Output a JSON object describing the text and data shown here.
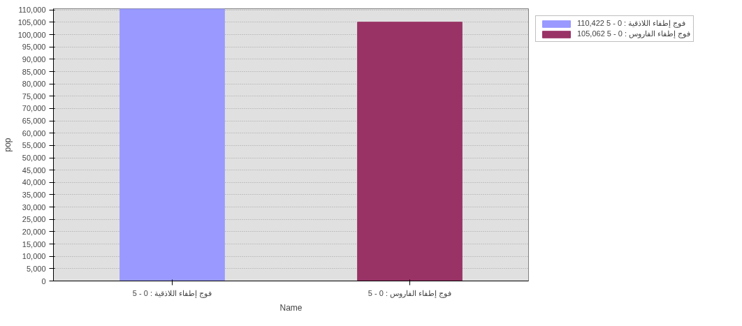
{
  "chart_data": {
    "type": "bar",
    "xlabel": "Name",
    "ylabel": "pop",
    "categories": [
      "فوج إطفاء اللاذقية : 0 - 5",
      "فوج إطفاء الفاروس : 0 - 5"
    ],
    "series": [
      {
        "name": "فوج إطفاء اللاذقية : 0 - 5 110,422",
        "color": "#9999ff",
        "values": [
          110422,
          null
        ]
      },
      {
        "name": "فوج إطفاء الفاروس : 0 - 5 105,062",
        "color": "#993366",
        "values": [
          null,
          105062
        ]
      }
    ],
    "ylim": [
      0,
      110500
    ],
    "yticks": [
      0,
      {
        "value": 5000,
        "label": "5,000"
      },
      {
        "value": 10000,
        "label": "10,000"
      },
      {
        "value": 15000,
        "label": "15,000"
      },
      {
        "value": 20000,
        "label": "20,000"
      },
      {
        "value": 25000,
        "label": "25,000"
      },
      {
        "value": 30000,
        "label": "30,000"
      },
      {
        "value": 35000,
        "label": "35,000"
      },
      {
        "value": 40000,
        "label": "40,000"
      },
      {
        "value": 45000,
        "label": "45,000"
      },
      {
        "value": 50000,
        "label": "50,000"
      },
      {
        "value": 55000,
        "label": "55,000"
      },
      {
        "value": 60000,
        "label": "60,000"
      },
      {
        "value": 65000,
        "label": "65,000"
      },
      {
        "value": 70000,
        "label": "70,000"
      },
      {
        "value": 75000,
        "label": "75,000"
      },
      {
        "value": 80000,
        "label": "80,000"
      },
      {
        "value": 85000,
        "label": "85,000"
      },
      {
        "value": 90000,
        "label": "90,000"
      },
      {
        "value": 95000,
        "label": "95,000"
      },
      {
        "value": 100000,
        "label": "100,000"
      },
      {
        "value": 105000,
        "label": "105,000"
      },
      {
        "value": 110000,
        "label": "110,000"
      }
    ],
    "grid": "y",
    "legend": "top right"
  }
}
